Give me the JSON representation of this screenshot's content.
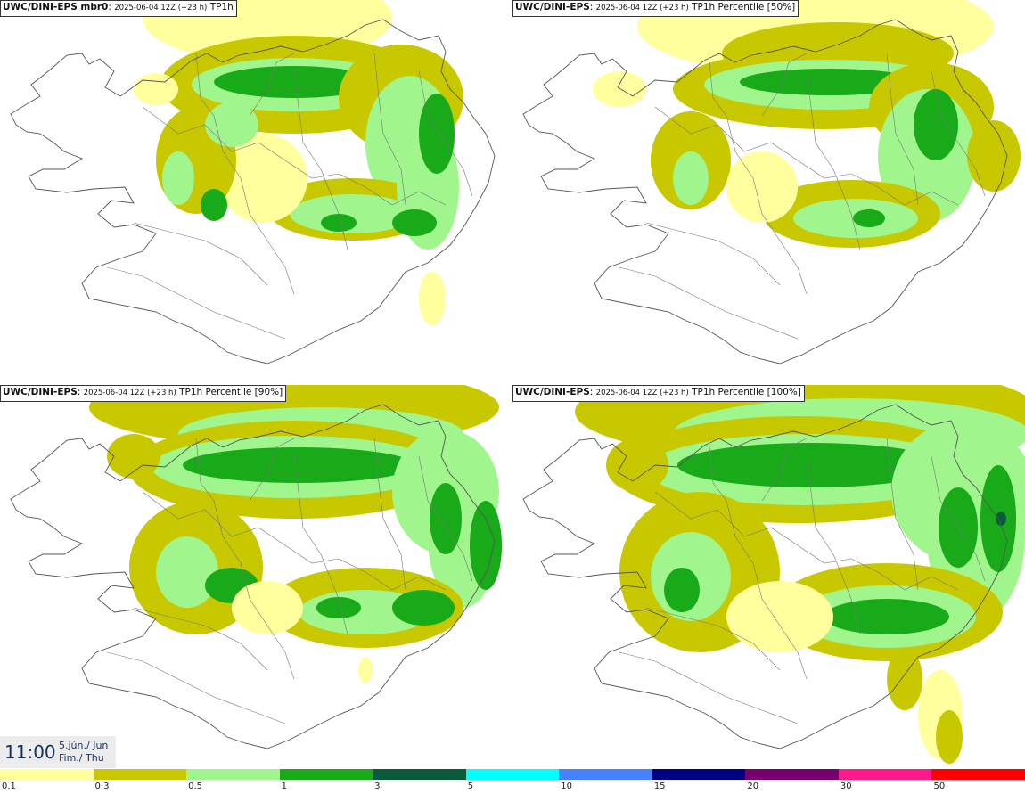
{
  "panels": [
    {
      "model": "UWC/DINI-EPS mbr0",
      "date": "2025-06-04 12Z (+23 h)",
      "field": "TP1h"
    },
    {
      "model": "UWC/DINI-EPS",
      "date": "2025-06-04 12Z (+23 h)",
      "field": "TP1h Percentile [50%]"
    },
    {
      "model": "UWC/DINI-EPS",
      "date": "2025-06-04 12Z (+23 h)",
      "field": "TP1h Percentile [90%]"
    },
    {
      "model": "UWC/DINI-EPS",
      "date": "2025-06-04 12Z (+23 h)",
      "field": "TP1h Percentile [100%]"
    }
  ],
  "valid_time": {
    "time": "11:00",
    "date_line": "5.jún./ Jun",
    "day_line": "Fim./ Thu"
  },
  "legend": {
    "colors": [
      "#ffff9e",
      "#c8c800",
      "#a0f58c",
      "#18aa18",
      "#0a5a3c",
      "#00ffff",
      "#4682ff",
      "#000082",
      "#78006e",
      "#ff1a8c",
      "#ff0000"
    ],
    "labels": [
      "0.1",
      "0.3",
      "0.5",
      "1",
      "3",
      "5",
      "10",
      "15",
      "20",
      "30",
      "50"
    ]
  }
}
